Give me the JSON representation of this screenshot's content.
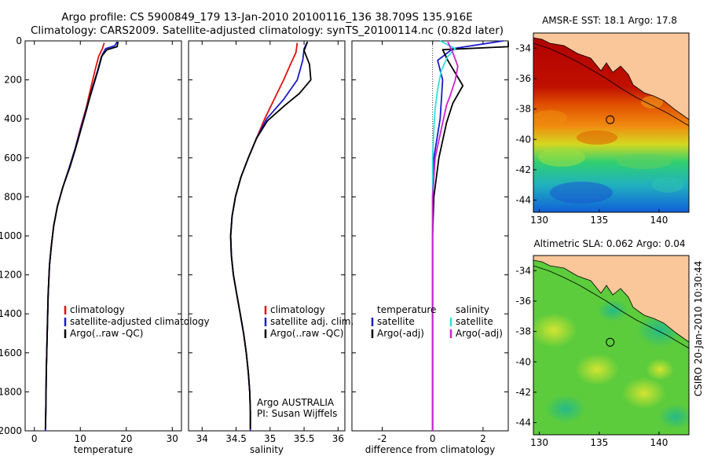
{
  "title_line1": "Argo profile: CS 5900849_179 13-Jan-2010 20100116_136 38.709S 135.916E",
  "title_line2": "Climatology: CARS2009. Satellite-adjusted climatology: synTS_20100114.nc (0.82d later)",
  "side_label": "CSIRO 20-Jan-2010 10:30:44",
  "colors": {
    "clim": "#e01010",
    "sat_temp": "#1a1acc",
    "argo": "#000000",
    "sat_sal": "#30e0e0",
    "argo_sal": "#d020d0",
    "land": "#f9c79a"
  },
  "chart_data": [
    {
      "type": "line",
      "name": "temperature-profile",
      "xlabel": "temperature",
      "ylabel": "",
      "xlim": [
        -2,
        32
      ],
      "ylim": [
        2000,
        0
      ],
      "xticks": [
        0,
        10,
        20,
        30
      ],
      "yticks": [
        0,
        200,
        400,
        600,
        800,
        1000,
        1200,
        1400,
        1600,
        1800,
        2000
      ],
      "legend": [
        "climatology",
        "satellite-adjusted climatology",
        "Argo(..raw -QC)"
      ],
      "series": [
        {
          "name": "climatology",
          "color": "#e01010",
          "points": [
            [
              15.2,
              10
            ],
            [
              14.8,
              40
            ],
            [
              14.0,
              80
            ],
            [
              13.2,
              150
            ],
            [
              12.2,
              250
            ],
            [
              11.2,
              350
            ],
            [
              10.0,
              450
            ],
            [
              8.9,
              550
            ],
            [
              7.6,
              650
            ],
            [
              6.2,
              750
            ],
            [
              5.0,
              850
            ],
            [
              4.2,
              950
            ],
            [
              3.7,
              1050
            ],
            [
              3.3,
              1150
            ],
            [
              3.0,
              1300
            ],
            [
              2.8,
              1500
            ],
            [
              2.6,
              1700
            ],
            [
              2.5,
              1900
            ],
            [
              2.4,
              2000
            ]
          ]
        },
        {
          "name": "satellite-adjusted climatology",
          "color": "#1a1acc",
          "points": [
            [
              18.0,
              5
            ],
            [
              17.5,
              25
            ],
            [
              15.5,
              40
            ],
            [
              14.8,
              70
            ],
            [
              14.0,
              140
            ],
            [
              12.6,
              250
            ],
            [
              11.3,
              350
            ],
            [
              10.1,
              450
            ],
            [
              8.9,
              550
            ],
            [
              7.6,
              650
            ],
            [
              6.2,
              750
            ],
            [
              5.0,
              850
            ],
            [
              4.2,
              950
            ],
            [
              3.7,
              1050
            ],
            [
              3.3,
              1150
            ],
            [
              3.0,
              1300
            ],
            [
              2.8,
              1500
            ],
            [
              2.6,
              1700
            ],
            [
              2.5,
              1900
            ],
            [
              2.4,
              2000
            ]
          ]
        },
        {
          "name": "Argo(..raw -QC)",
          "color": "#000000",
          "points": [
            [
              18.2,
              5
            ],
            [
              18.0,
              30
            ],
            [
              15.8,
              45
            ],
            [
              14.6,
              80
            ],
            [
              13.8,
              150
            ],
            [
              12.5,
              250
            ],
            [
              11.4,
              350
            ],
            [
              10.2,
              450
            ],
            [
              9.0,
              550
            ],
            [
              7.7,
              650
            ],
            [
              6.2,
              750
            ],
            [
              5.0,
              850
            ],
            [
              4.2,
              950
            ],
            [
              3.7,
              1050
            ],
            [
              3.3,
              1150
            ],
            [
              3.0,
              1300
            ],
            [
              2.8,
              1500
            ],
            [
              2.6,
              1700
            ],
            [
              2.5,
              1900
            ],
            [
              2.4,
              1990
            ]
          ]
        }
      ]
    },
    {
      "type": "line",
      "name": "salinity-profile",
      "xlabel": "salinity",
      "xlim": [
        33.8,
        36.1
      ],
      "ylim": [
        2000,
        0
      ],
      "xticks": [
        34,
        34.5,
        35,
        35.5,
        36
      ],
      "legend": [
        "climatology",
        "satellite adj. clim.",
        "Argo(..raw -QC)"
      ],
      "annotation": [
        "Argo AUSTRALIA",
        "PI: Susan Wijffels"
      ],
      "series": [
        {
          "name": "climatology",
          "color": "#e01010",
          "points": [
            [
              35.4,
              10
            ],
            [
              35.38,
              60
            ],
            [
              35.3,
              120
            ],
            [
              35.2,
              200
            ],
            [
              35.06,
              300
            ],
            [
              34.92,
              400
            ],
            [
              34.8,
              500
            ],
            [
              34.68,
              600
            ],
            [
              34.57,
              700
            ],
            [
              34.49,
              800
            ],
            [
              34.44,
              900
            ],
            [
              34.42,
              1000
            ],
            [
              34.43,
              1100
            ],
            [
              34.46,
              1200
            ],
            [
              34.51,
              1300
            ],
            [
              34.56,
              1400
            ],
            [
              34.61,
              1500
            ],
            [
              34.65,
              1600
            ],
            [
              34.68,
              1700
            ],
            [
              34.7,
              1800
            ],
            [
              34.71,
              1900
            ],
            [
              34.71,
              2000
            ]
          ]
        },
        {
          "name": "satellite adj. clim.",
          "color": "#1a1acc",
          "points": [
            [
              35.55,
              5
            ],
            [
              35.5,
              40
            ],
            [
              35.48,
              100
            ],
            [
              35.4,
              200
            ],
            [
              35.2,
              300
            ],
            [
              34.95,
              400
            ],
            [
              34.8,
              500
            ],
            [
              34.68,
              600
            ],
            [
              34.57,
              700
            ],
            [
              34.49,
              800
            ],
            [
              34.44,
              900
            ],
            [
              34.42,
              1000
            ],
            [
              34.43,
              1100
            ],
            [
              34.46,
              1200
            ],
            [
              34.51,
              1300
            ],
            [
              34.56,
              1400
            ],
            [
              34.61,
              1500
            ],
            [
              34.65,
              1600
            ],
            [
              34.68,
              1700
            ],
            [
              34.7,
              1800
            ],
            [
              34.71,
              1900
            ],
            [
              34.71,
              2000
            ]
          ]
        },
        {
          "name": "Argo(..raw -QC)",
          "color": "#000000",
          "points": [
            [
              35.55,
              5
            ],
            [
              35.5,
              50
            ],
            [
              35.58,
              120
            ],
            [
              35.6,
              200
            ],
            [
              35.43,
              270
            ],
            [
              35.22,
              330
            ],
            [
              34.96,
              410
            ],
            [
              34.8,
              500
            ],
            [
              34.68,
              600
            ],
            [
              34.57,
              700
            ],
            [
              34.49,
              800
            ],
            [
              34.44,
              900
            ],
            [
              34.42,
              1000
            ],
            [
              34.43,
              1100
            ],
            [
              34.46,
              1200
            ],
            [
              34.51,
              1300
            ],
            [
              34.56,
              1400
            ],
            [
              34.61,
              1500
            ],
            [
              34.65,
              1600
            ],
            [
              34.68,
              1700
            ],
            [
              34.7,
              1800
            ],
            [
              34.71,
              1900
            ],
            [
              34.71,
              1990
            ]
          ]
        }
      ]
    },
    {
      "type": "line",
      "name": "difference-profile",
      "xlabel": "difference from climatology",
      "xlim": [
        -3.2,
        3
      ],
      "ylim": [
        2000,
        0
      ],
      "xticks": [
        -2,
        0,
        2
      ],
      "legend_left": [
        "temperature",
        "satellite",
        "Argo(-adj)"
      ],
      "legend_right": [
        "salinity",
        "satellite",
        "Argo(-adj)"
      ],
      "series": [
        {
          "name": "temperature satellite",
          "color": "#1a1acc",
          "points": [
            [
              2.8,
              0
            ],
            [
              0.8,
              40
            ],
            [
              0.2,
              100
            ],
            [
              0.4,
              200
            ],
            [
              0.3,
              400
            ],
            [
              0.05,
              600
            ],
            [
              0,
              800
            ],
            [
              0,
              2000
            ]
          ]
        },
        {
          "name": "temperature Argo(-adj)",
          "color": "#000000",
          "points": [
            [
              3.0,
              5
            ],
            [
              3.0,
              30
            ],
            [
              0.4,
              45
            ],
            [
              0.6,
              100
            ],
            [
              1.2,
              230
            ],
            [
              0.8,
              320
            ],
            [
              0.55,
              420
            ],
            [
              0.25,
              600
            ],
            [
              0.05,
              800
            ],
            [
              0,
              1000
            ],
            [
              0,
              2000
            ]
          ]
        },
        {
          "name": "salinity satellite",
          "color": "#30e0e0",
          "points": [
            [
              0.3,
              0
            ],
            [
              0.9,
              40
            ],
            [
              0.6,
              80
            ],
            [
              0.35,
              150
            ],
            [
              0.2,
              250
            ],
            [
              0.1,
              350
            ],
            [
              0.05,
              450
            ],
            [
              0,
              600
            ],
            [
              0,
              2000
            ]
          ]
        },
        {
          "name": "salinity Argo(-adj)",
          "color": "#d020d0",
          "points": [
            [
              0.6,
              5
            ],
            [
              0.8,
              60
            ],
            [
              1.0,
              130
            ],
            [
              0.9,
              200
            ],
            [
              0.7,
              280
            ],
            [
              0.55,
              330
            ],
            [
              0.35,
              450
            ],
            [
              0.1,
              600
            ],
            [
              0,
              800
            ],
            [
              0,
              2000
            ]
          ]
        }
      ]
    },
    {
      "type": "heatmap",
      "name": "sst-map",
      "title": "AMSR-E SST: 18.1 Argo: 17.8",
      "xlim": [
        129.5,
        142.5
      ],
      "ylim": [
        -44.8,
        -33
      ],
      "xticks": [
        130,
        135,
        140
      ],
      "yticks": [
        -34,
        -36,
        -38,
        -40,
        -42,
        -44
      ],
      "marker": [
        135.916,
        -38.709
      ]
    },
    {
      "type": "heatmap",
      "name": "sla-map",
      "title": "Altimetric SLA: 0.062 Argo: 0.04",
      "xlim": [
        129.5,
        142.5
      ],
      "ylim": [
        -44.8,
        -33
      ],
      "xticks": [
        130,
        135,
        140
      ],
      "yticks": [
        -34,
        -36,
        -38,
        -40,
        -42,
        -44
      ],
      "marker": [
        135.916,
        -38.709
      ]
    }
  ]
}
